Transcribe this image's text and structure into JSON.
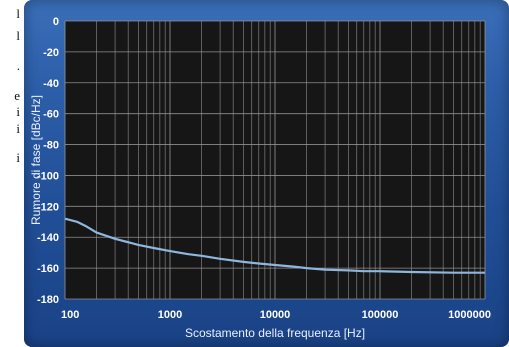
{
  "side_text": [
    "l",
    "l",
    ".",
    "e",
    "i",
    "i",
    "i"
  ],
  "chart_data": {
    "type": "line",
    "title": "",
    "xlabel": "Scostamento della frequenza [Hz]",
    "ylabel": "Rumore di fase [dBc/Hz]",
    "xscale": "log",
    "xlim": [
      100,
      1000000
    ],
    "ylim": [
      -180,
      0
    ],
    "xticks": [
      100,
      1000,
      10000,
      100000,
      1000000
    ],
    "xtick_labels": [
      "100",
      "1000",
      "10000",
      "100000",
      "1000000"
    ],
    "yticks": [
      0,
      -20,
      -40,
      -60,
      -80,
      -100,
      -120,
      -140,
      -160,
      -180
    ],
    "ytick_labels": [
      "0",
      "-20",
      "-40",
      "-60",
      "-80",
      "-100",
      "-120",
      "-140",
      "-160",
      "-180"
    ],
    "grid": true,
    "colors": {
      "plot_bg": "#161616",
      "line": "#8fb6dd",
      "grid": "#9a9a9a"
    },
    "series": [
      {
        "x": [
          100,
          130,
          160,
          200,
          300,
          500,
          700,
          1000,
          1500,
          2000,
          3000,
          5000,
          7000,
          10000,
          15000,
          20000,
          30000,
          50000,
          70000,
          100000,
          200000,
          500000,
          1000000
        ],
        "y": [
          -128,
          -130,
          -133,
          -137,
          -141,
          -145,
          -147,
          -149,
          -151,
          -152,
          -154,
          -156,
          -157,
          -158,
          -159,
          -160,
          -161,
          -161.5,
          -162,
          -162,
          -162.5,
          -163,
          -163
        ]
      }
    ]
  }
}
